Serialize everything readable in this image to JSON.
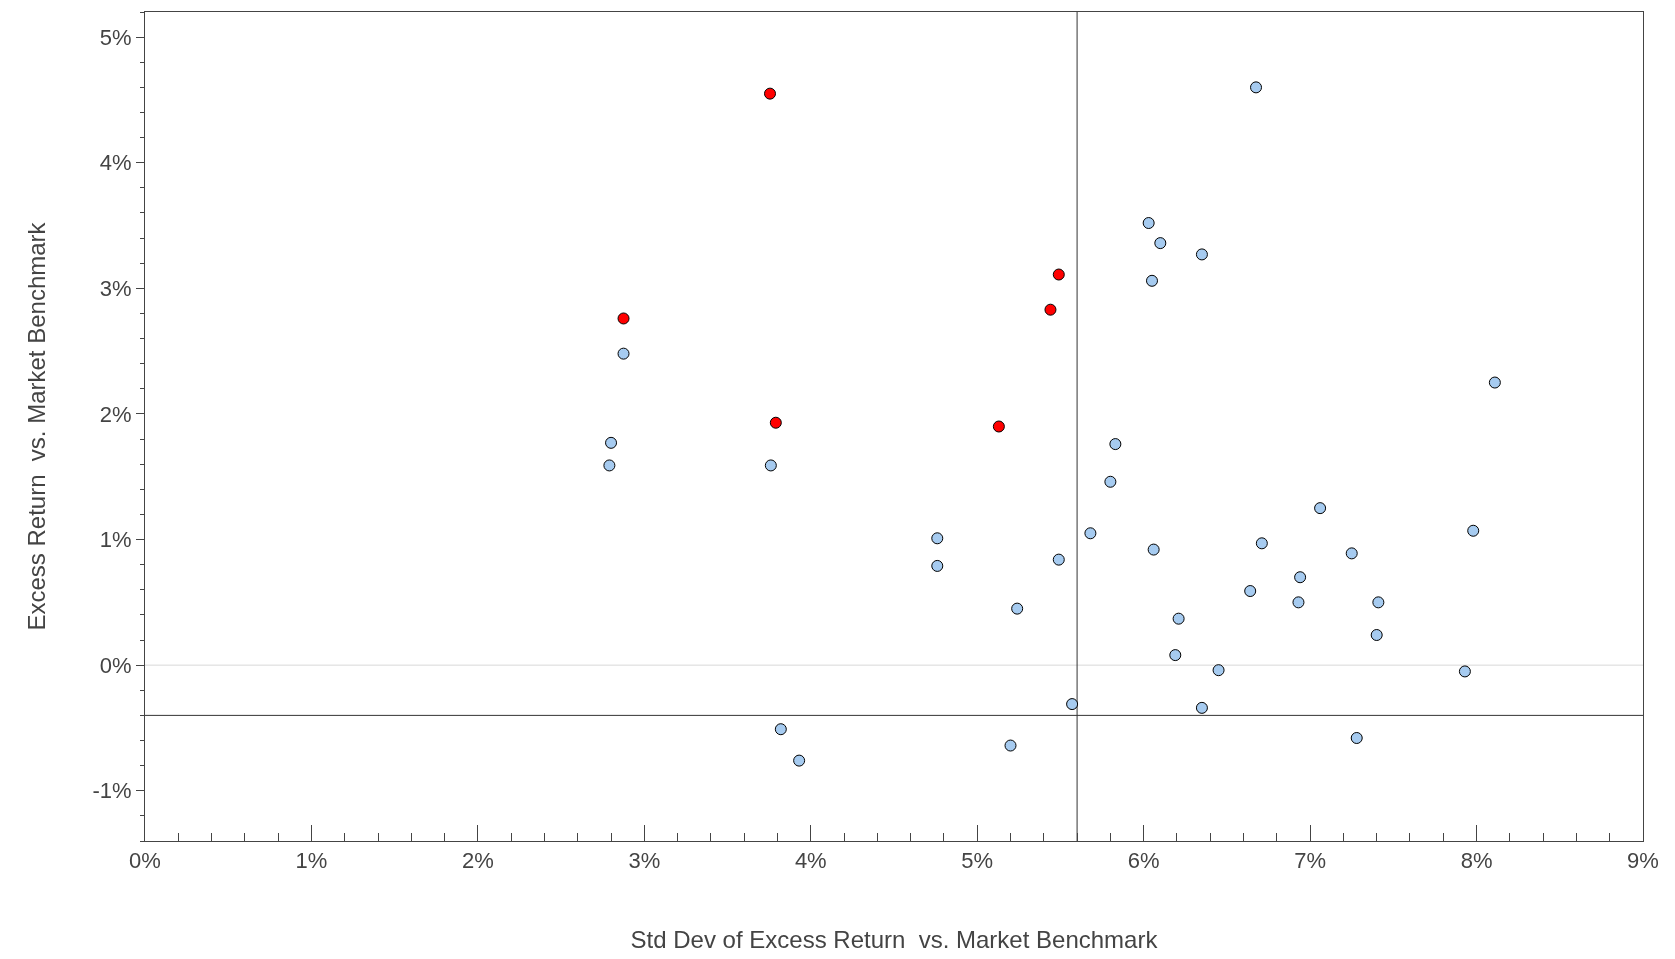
{
  "chart_data": {
    "type": "scatter",
    "xlabel": "Std Dev of Excess Return  vs. Market Benchmark",
    "ylabel": "Excess Return  vs. Market Benchmark",
    "xlim": [
      0,
      9
    ],
    "ylim": [
      -1.4,
      5.2
    ],
    "xticks": [
      {
        "value": 0,
        "label": "0%"
      },
      {
        "value": 1,
        "label": "1%"
      },
      {
        "value": 2,
        "label": "2%"
      },
      {
        "value": 3,
        "label": "3%"
      },
      {
        "value": 4,
        "label": "4%"
      },
      {
        "value": 5,
        "label": "5%"
      },
      {
        "value": 6,
        "label": "6%"
      },
      {
        "value": 7,
        "label": "7%"
      },
      {
        "value": 8,
        "label": "8%"
      },
      {
        "value": 9,
        "label": "9%"
      }
    ],
    "yticks": [
      {
        "value": -1,
        "label": "-1%"
      },
      {
        "value": 0,
        "label": "0%"
      },
      {
        "value": 1,
        "label": "1%"
      },
      {
        "value": 2,
        "label": "2%"
      },
      {
        "value": 3,
        "label": "3%"
      },
      {
        "value": 4,
        "label": "4%"
      },
      {
        "value": 5,
        "label": "5%"
      }
    ],
    "grid": false,
    "marker": "circle",
    "ref_lines": [
      {
        "axis": "y",
        "value": 0,
        "color": "#d9d9d9"
      },
      {
        "axis": "x",
        "value": 5.6,
        "color": "#333333"
      },
      {
        "axis": "y",
        "value": -0.4,
        "color": "#333333"
      }
    ],
    "series": [
      {
        "color": "#a6cbf0",
        "x": [
          6.675,
          6.03,
          6.1,
          6.35,
          6.05,
          2.875,
          8.11,
          2.8,
          2.79,
          3.76,
          5.83,
          5.8,
          7.06,
          7.98,
          4.76,
          5.68,
          4.76,
          5.49,
          6.71,
          6.06,
          7.25,
          6.94,
          6.64,
          6.93,
          7.41,
          5.24,
          6.21,
          7.4,
          6.19,
          6.45,
          7.93,
          5.57,
          6.35,
          3.82,
          7.28,
          5.2,
          3.93
        ],
        "values": [
          4.6,
          3.52,
          3.36,
          3.27,
          3.06,
          2.48,
          2.25,
          1.77,
          1.59,
          1.59,
          1.76,
          1.46,
          1.25,
          1.07,
          1.01,
          1.05,
          0.79,
          0.84,
          0.97,
          0.92,
          0.89,
          0.7,
          0.59,
          0.5,
          0.5,
          0.45,
          0.37,
          0.24,
          0.08,
          -0.04,
          -0.05,
          -0.31,
          -0.34,
          -0.51,
          -0.58,
          -0.64,
          -0.76
        ]
      },
      {
        "color": "#ff0000",
        "x": [
          3.755,
          2.875,
          5.49,
          5.44,
          3.79,
          5.13
        ],
        "values": [
          4.55,
          2.76,
          3.11,
          2.83,
          1.93,
          1.9
        ]
      }
    ]
  }
}
